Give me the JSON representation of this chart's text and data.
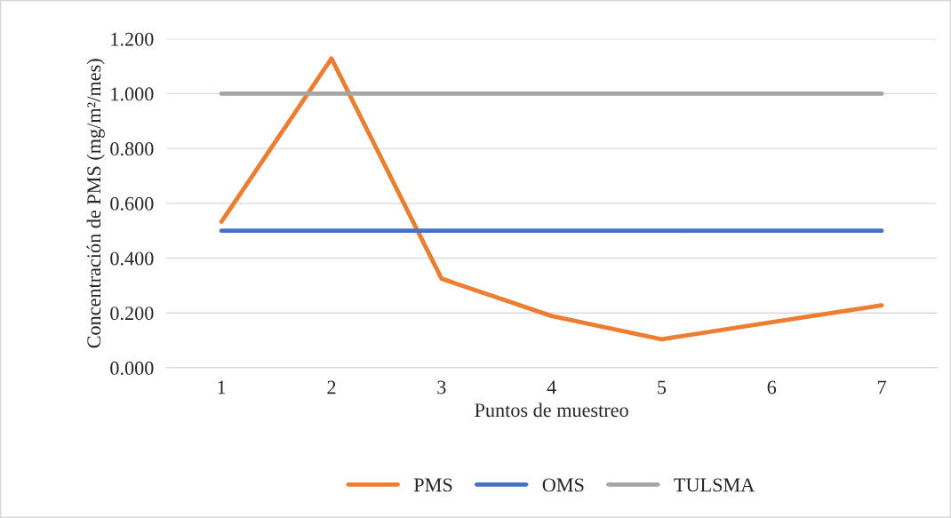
{
  "chart_data": {
    "type": "line",
    "xlabel": "Puntos de muestreo",
    "ylabel": "Concentración de PMS (mg/m²/mes)",
    "categories": [
      "1",
      "2",
      "3",
      "4",
      "5",
      "6",
      "7"
    ],
    "series": [
      {
        "name": "PMS",
        "color": "#ed7d31",
        "values": [
          0.533,
          1.128,
          0.325,
          0.189,
          0.104,
          0.166,
          0.228
        ]
      },
      {
        "name": "OMS",
        "color": "#4472c4",
        "values": [
          0.5,
          0.5,
          0.5,
          0.5,
          0.5,
          0.5,
          0.5
        ]
      },
      {
        "name": "TULSMA",
        "color": "#a5a5a5",
        "values": [
          1.0,
          1.0,
          1.0,
          1.0,
          1.0,
          1.0,
          1.0
        ]
      }
    ],
    "ylim": [
      0,
      1.2
    ],
    "yticks": [
      {
        "value": 0,
        "label": "0.000"
      },
      {
        "value": 0.2,
        "label": "0.200"
      },
      {
        "value": 0.4,
        "label": "0.400"
      },
      {
        "value": 0.6,
        "label": "0.600"
      },
      {
        "value": 0.8,
        "label": "0.800"
      },
      {
        "value": 1.0,
        "label": "1.000"
      },
      {
        "value": 1.2,
        "label": "1.200"
      }
    ],
    "grid": "y",
    "legend": "bottom",
    "marker": "none",
    "line_style": "solid"
  }
}
